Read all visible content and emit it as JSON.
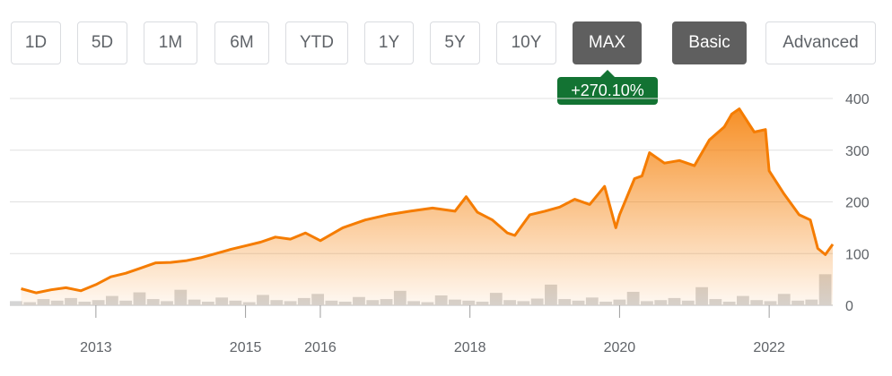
{
  "range_buttons": [
    "1D",
    "5D",
    "1M",
    "6M",
    "YTD",
    "1Y",
    "5Y",
    "10Y",
    "MAX"
  ],
  "active_range": "MAX",
  "view_buttons": [
    "Basic",
    "Advanced"
  ],
  "active_view": "Basic",
  "change_badge": "+270.10%",
  "colors": {
    "price_line": "#f57c00",
    "badge": "#137333",
    "active_button": "#5f5f5f",
    "volume": "#d5d5d5"
  },
  "chart_data": {
    "type": "area",
    "title": "",
    "xlabel": "",
    "ylabel": "",
    "ylim": [
      0,
      400
    ],
    "yticks": [
      0,
      100,
      200,
      300,
      400
    ],
    "xticks": [
      "2013",
      "2015",
      "2016",
      "2018",
      "2020",
      "2022"
    ],
    "grid": true,
    "series": [
      {
        "x": [
          2012.0,
          2012.2,
          2012.4,
          2012.6,
          2012.8,
          2013.0,
          2013.2,
          2013.4,
          2013.6,
          2013.8,
          2014.0,
          2014.2,
          2014.4,
          2014.6,
          2014.8,
          2015.0,
          2015.2,
          2015.4,
          2015.6,
          2015.8,
          2016.0,
          2016.3,
          2016.6,
          2016.9,
          2017.2,
          2017.5,
          2017.8,
          2017.95,
          2018.1,
          2018.3,
          2018.5,
          2018.6,
          2018.8,
          2019.0,
          2019.2,
          2019.4,
          2019.6,
          2019.8,
          2019.95,
          2020.0,
          2020.2,
          2020.3,
          2020.4,
          2020.6,
          2020.8,
          2021.0,
          2021.2,
          2021.4,
          2021.5,
          2021.6,
          2021.8,
          2021.95,
          2022.0,
          2022.2,
          2022.4,
          2022.55,
          2022.65,
          2022.75,
          2022.85
        ],
        "y": [
          32,
          24,
          30,
          34,
          28,
          40,
          55,
          62,
          72,
          82,
          83,
          86,
          92,
          100,
          108,
          115,
          122,
          132,
          128,
          140,
          125,
          150,
          165,
          175,
          182,
          188,
          182,
          210,
          180,
          165,
          140,
          135,
          175,
          182,
          190,
          205,
          195,
          230,
          150,
          175,
          245,
          250,
          295,
          275,
          280,
          270,
          320,
          345,
          370,
          380,
          335,
          340,
          260,
          215,
          175,
          165,
          110,
          98,
          118
        ]
      }
    ],
    "volume": [
      8,
      6,
      12,
      9,
      14,
      7,
      10,
      18,
      9,
      25,
      12,
      8,
      30,
      11,
      7,
      15,
      9,
      6,
      20,
      10,
      8,
      14,
      22,
      9,
      7,
      16,
      10,
      12,
      28,
      8,
      6,
      19,
      11,
      9,
      7,
      24,
      10,
      8,
      13,
      40,
      12,
      9,
      15,
      7,
      11,
      26,
      8,
      10,
      14,
      9,
      35,
      12,
      7,
      18,
      10,
      8,
      22,
      9,
      11,
      60
    ]
  }
}
